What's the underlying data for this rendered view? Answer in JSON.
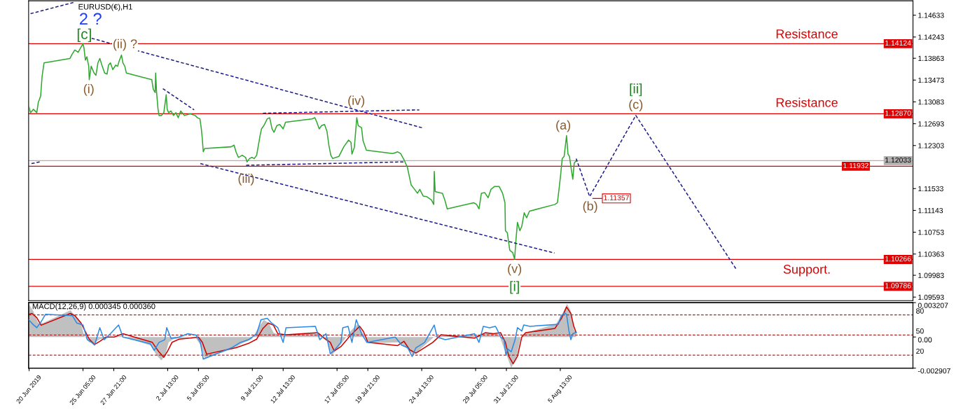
{
  "chart_data": [
    {
      "type": "line",
      "title": "EURUSD(€),H1",
      "xlim": [
        "2019-06-20T12:00",
        "2019-09-05T02:00"
      ],
      "ylim": [
        1.0953,
        1.1489
      ],
      "tick_labels": "y",
      "yticks": [
        1.14633,
        1.14243,
        1.13863,
        1.13473,
        1.13083,
        1.12693,
        1.12303,
        1.11533,
        1.11143,
        1.10753,
        1.10363,
        1.09983,
        1.09593
      ],
      "series": [
        {
          "color": "#2fa82f",
          "x": [
            "2019-06-20T12:00",
            "2019-06-20T16:00",
            "2019-06-20T22:00",
            "2019-06-21T05:00",
            "2019-06-21T08:00",
            "2019-06-21T13:00",
            "2019-06-21T16:00",
            "2019-06-21T20:00",
            "2019-06-24T02:00",
            "2019-06-24T06:00",
            "2019-06-24T12:00",
            "2019-06-24T19:00",
            "2019-06-25T00:00",
            "2019-06-25T05:00",
            "2019-06-25T07:00",
            "2019-06-25T10:00",
            "2019-06-25T13:00",
            "2019-06-25T17:00",
            "2019-06-25T18:00",
            "2019-06-25T22:00",
            "2019-06-26T04:00",
            "2019-06-26T08:00",
            "2019-06-26T12:00",
            "2019-06-26T16:00",
            "2019-06-26T21:00",
            "2019-06-27T02:00",
            "2019-06-27T07:00",
            "2019-06-27T10:00",
            "2019-06-27T14:00",
            "2019-06-27T19:00",
            "2019-06-28T01:00",
            "2019-06-28T05:00",
            "2019-06-28T08:00",
            "2019-06-28T13:00",
            "2019-06-28T16:00",
            "2019-06-28T20:00",
            "2019-06-28T23:00",
            "2019-07-01T04:00",
            "2019-07-01T07:00",
            "2019-07-01T11:00",
            "2019-07-01T12:00",
            "2019-07-01T14:00",
            "2019-07-01T17:00",
            "2019-07-01T19:00",
            "2019-07-02T00:00",
            "2019-07-02T05:00",
            "2019-07-02T10:00",
            "2019-07-02T12:00",
            "2019-07-02T15:00",
            "2019-07-02T20:00",
            "2019-07-03T01:00",
            "2019-07-03T06:00",
            "2019-07-03T11:00",
            "2019-07-03T16:00",
            "2019-07-04T00:00",
            "2019-07-04T12:00",
            "2019-07-04T22:00",
            "2019-07-05T03:00",
            "2019-07-05T08:00",
            "2019-07-05T11:00",
            "2019-07-05T13:00",
            "2019-07-05T15:00",
            "2019-07-05T18:00",
            "2019-07-08T01:00",
            "2019-07-08T07:00",
            "2019-07-08T11:00",
            "2019-07-08T16:00",
            "2019-07-09T00:00",
            "2019-07-09T07:00",
            "2019-07-09T10:00",
            "2019-07-09T15:00",
            "2019-07-09T20:00",
            "2019-07-10T01:00",
            "2019-07-10T06:00",
            "2019-07-10T10:00",
            "2019-07-10T13:00",
            "2019-07-10T16:00",
            "2019-07-10T21:00",
            "2019-07-11T04:00",
            "2019-07-11T09:00",
            "2019-07-11T14:00",
            "2019-07-11T18:00",
            "2019-07-12T00:00",
            "2019-07-12T06:00",
            "2019-07-12T13:00",
            "2019-07-12T18:00",
            "2019-07-15T01:00",
            "2019-07-15T07:00",
            "2019-07-15T11:00",
            "2019-07-15T16:00",
            "2019-07-15T21:00",
            "2019-07-16T03:00",
            "2019-07-16T08:00",
            "2019-07-16T12:00",
            "2019-07-16T16:00",
            "2019-07-16T20:00",
            "2019-07-17T09:00",
            "2019-07-17T19:00",
            "2019-07-18T05:00",
            "2019-07-18T10:00",
            "2019-07-18T12:00",
            "2019-07-18T17:00",
            "2019-07-18T22:00",
            "2019-07-19T01:00",
            "2019-07-19T08:00",
            "2019-07-19T11:00",
            "2019-07-19T18:00",
            "2019-07-22T01:00",
            "2019-07-22T11:00",
            "2019-07-22T17:00",
            "2019-07-23T00:00",
            "2019-07-23T07:00",
            "2019-07-23T15:00",
            "2019-07-23T23:00",
            "2019-07-24T04:00",
            "2019-07-24T09:00",
            "2019-07-24T16:00",
            "2019-07-24T23:00",
            "2019-07-25T09:00",
            "2019-07-25T14:00",
            "2019-07-25T15:00",
            "2019-07-25T17:00",
            "2019-07-26T01:00",
            "2019-07-26T08:00",
            "2019-07-26T13:00",
            "2019-07-26T18:00",
            "2019-07-29T01:00",
            "2019-07-29T07:00",
            "2019-07-29T12:00",
            "2019-07-29T17:00",
            "2019-07-30T00:00",
            "2019-07-30T07:00",
            "2019-07-30T13:00",
            "2019-07-30T20:00",
            "2019-07-31T06:00",
            "2019-07-31T13:00",
            "2019-07-31T18:00",
            "2019-07-31T19:00",
            "2019-07-31T23:00",
            "2019-08-01T04:00",
            "2019-08-01T10:00",
            "2019-08-01T14:00",
            "2019-08-01T17:00",
            "2019-08-01T20:00",
            "2019-08-02T01:00",
            "2019-08-02T05:00",
            "2019-08-02T10:00",
            "2019-08-02T15:00",
            "2019-08-02T21:00",
            "2019-08-05T02:00",
            "2019-08-05T07:00",
            "2019-08-05T11:00",
            "2019-08-05T14:00",
            "2019-08-05T17:00",
            "2019-08-05T21:00",
            "2019-08-06T02:00",
            "2019-08-06T05:00",
            "2019-08-06T08:00",
            "2019-08-06T12:00",
            "2019-08-06T15:00",
            "2019-08-06T18:00",
            "2019-08-06T22:00"
          ],
          "values": [
            1.1301,
            1.1289,
            1.1295,
            1.1289,
            1.1307,
            1.1319,
            1.1354,
            1.1378,
            1.1386,
            1.1393,
            1.1401,
            1.1397,
            1.1405,
            1.1412,
            1.1405,
            1.1383,
            1.1389,
            1.1372,
            1.1348,
            1.1372,
            1.136,
            1.1356,
            1.1378,
            1.1386,
            1.1372,
            1.136,
            1.1358,
            1.1374,
            1.1378,
            1.1366,
            1.1374,
            1.1372,
            1.1381,
            1.1392,
            1.1378,
            1.1372,
            1.136,
            1.1348,
            1.1331,
            1.1325,
            1.136,
            1.1325,
            1.1295,
            1.1284,
            1.1284,
            1.1289,
            1.1321,
            1.1295,
            1.1289,
            1.1292,
            1.1284,
            1.1289,
            1.128,
            1.1292,
            1.1284,
            1.1287,
            1.1284,
            1.128,
            1.1278,
            1.126,
            1.1242,
            1.1219,
            1.1225,
            1.1228,
            1.1231,
            1.1219,
            1.1209,
            1.1213,
            1.1209,
            1.1201,
            1.1207,
            1.1209,
            1.1207,
            1.1213,
            1.1233,
            1.1248,
            1.126,
            1.1266,
            1.1278,
            1.128,
            1.126,
            1.1254,
            1.1266,
            1.1268,
            1.126,
            1.1272,
            1.1278,
            1.128,
            1.1272,
            1.126,
            1.1266,
            1.1268,
            1.1256,
            1.1231,
            1.1213,
            1.1207,
            1.1211,
            1.1228,
            1.124,
            1.1236,
            1.1215,
            1.1227,
            1.128,
            1.1266,
            1.1262,
            1.1239,
            1.1222,
            1.1216,
            1.1219,
            1.1216,
            1.1205,
            1.1192,
            1.116,
            1.1151,
            1.1145,
            1.1152,
            1.114,
            1.1139,
            1.1133,
            1.1125,
            1.1184,
            1.1148,
            1.1146,
            1.1145,
            1.1133,
            1.1117,
            1.1128,
            1.1125,
            1.1117,
            1.1145,
            1.1146,
            1.1137,
            1.1152,
            1.1157,
            1.1157,
            1.1145,
            1.1128,
            1.1078,
            1.1074,
            1.1043,
            1.1039,
            1.1027,
            1.1063,
            1.1093,
            1.1078,
            1.1086,
            1.111,
            1.1101,
            1.1113,
            1.1125,
            1.1128,
            1.1157,
            1.118,
            1.1207,
            1.1211,
            1.1248,
            1.1215,
            1.1211,
            1.1187,
            1.117,
            1.1199,
            1.1203
          ]
        },
        {
          "color": "#1c1c8c",
          "line_style": "dashed",
          "x": [
            "2019-08-06T22:00",
            "2019-08-08T02:00",
            "2019-08-12T02:00",
            "2019-08-20T18:00"
          ],
          "values": [
            1.1207,
            1.1139,
            1.1284,
            1.101
          ]
        },
        {
          "color": "#1c1c8c",
          "line_style": "dashed",
          "x": [
            "2019-06-25T23:00",
            "2019-07-24T14:00"
          ],
          "values": [
            1.1422,
            1.1262
          ]
        },
        {
          "color": "#1c1c8c",
          "line_style": "dashed",
          "x": [
            "2019-07-02T03:00",
            "2019-07-04T20:00"
          ],
          "values": [
            1.1332,
            1.1294
          ]
        },
        {
          "color": "#1c1c8c",
          "line_style": "dashed",
          "x": [
            "2019-07-05T09:00",
            "2019-08-05T01:00"
          ],
          "values": [
            1.1198,
            1.1038
          ]
        },
        {
          "color": "#1c1c8c",
          "line_style": "dashed",
          "x": [
            "2019-07-10T19:00",
            "2019-07-24T08:00"
          ],
          "values": [
            1.1288,
            1.1294
          ]
        },
        {
          "color": "#1c1c8c",
          "line_style": "dashed",
          "x": [
            "2019-07-09T08:00",
            "2019-07-23T00:00"
          ],
          "values": [
            1.1195,
            1.1201
          ]
        },
        {
          "color": "#1c1c8c",
          "line_style": "dashed",
          "x": [
            "2019-06-20T16:00",
            "2019-06-24T09:00"
          ],
          "values": [
            1.1466,
            1.1486
          ]
        },
        {
          "color": "#1c1c8c",
          "line_style": "dashed",
          "x": [
            "2019-06-20T18:00",
            "2019-06-21T11:00"
          ],
          "values": [
            1.1198,
            1.1201
          ]
        }
      ],
      "ref_lines": [
        {
          "axis": "y",
          "value": 1.14124,
          "label": "1.14124",
          "color": "#e00000"
        },
        {
          "axis": "y",
          "value": 1.1287,
          "label": "1.12870",
          "color": "#e00000"
        },
        {
          "axis": "y",
          "value": 1.12033,
          "label": "1.12033",
          "color": "#b0b0b0"
        },
        {
          "axis": "y",
          "value": 1.11932,
          "label": "1.11932",
          "color": "#e00000"
        },
        {
          "axis": "y",
          "value": 1.10266,
          "label": "1.10266",
          "color": "#e00000"
        },
        {
          "axis": "y",
          "value": 1.09786,
          "label": "1.09786",
          "color": "#e00000"
        }
      ],
      "annotations": [
        "2 ?",
        "[c]",
        "(ii) ?",
        "(i)",
        "(iii)",
        "(iv)",
        "(v)",
        "[i]",
        "(a)",
        "(b)",
        "(c)",
        "[ii]",
        "Resistance",
        "Resistance",
        "Support.",
        "1.11357"
      ]
    },
    {
      "type": "line",
      "title": "MACD(12,26,9) 0.000345 0.000360",
      "xlim": [
        "2019-06-20T12:00",
        "2019-09-05T02:00"
      ],
      "ylim": [
        -0.002907,
        0.003207
      ],
      "y2lim": [
        0.6,
        98.4
      ],
      "xticks": [
        {
          "value": "2019-06-20T13:00",
          "label": "20 Jun 2019"
        },
        {
          "value": "2019-06-25T05:00",
          "label": "25 Jun 05:00"
        },
        {
          "value": "2019-06-27T21:00",
          "label": "27 Jun 21:00"
        },
        {
          "value": "2019-07-02T13:00",
          "label": "2 Jul 13:00"
        },
        {
          "value": "2019-07-05T05:00",
          "label": "5 Jul 05:00"
        },
        {
          "value": "2019-07-09T21:00",
          "label": "9 Jul 21:00"
        },
        {
          "value": "2019-07-12T13:00",
          "label": "12 Jul 13:00"
        },
        {
          "value": "2019-07-17T05:00",
          "label": "17 Jul 05:00"
        },
        {
          "value": "2019-07-19T21:00",
          "label": "19 Jul 21:00"
        },
        {
          "value": "2019-07-24T13:00",
          "label": "24 Jul 13:00"
        },
        {
          "value": "2019-07-29T05:00",
          "label": "29 Jul 05:00"
        },
        {
          "value": "2019-07-31T21:00",
          "label": "31 Jul 21:00"
        },
        {
          "value": "2019-08-05T13:00",
          "label": "5 Aug 13:00"
        }
      ],
      "yticks": [
        0.003207,
        {
          "value": 0,
          "label": "0.00"
        },
        -0.002907
      ],
      "y2ticks": [
        80,
        50,
        20
      ],
      "series": [
        {
          "type": "area",
          "color": "#c0c0c0",
          "x": [
            "2019-06-20T12:00",
            "2019-06-20T22:00",
            "2019-06-21T08:00",
            "2019-06-21T18:00",
            "2019-06-24T03:00",
            "2019-06-24T14:00",
            "2019-06-25T00:00",
            "2019-06-25T08:00",
            "2019-06-25T18:00",
            "2019-06-26T04:00",
            "2019-06-26T16:00",
            "2019-06-27T07:00",
            "2019-06-27T22:00",
            "2019-06-28T13:00",
            "2019-07-01T02:00",
            "2019-07-01T14:00",
            "2019-07-02T00:00",
            "2019-07-02T08:00",
            "2019-07-02T15:00",
            "2019-07-03T01:00",
            "2019-07-03T21:00",
            "2019-07-04T22:00",
            "2019-07-05T10:00",
            "2019-07-05T18:00",
            "2019-07-08T04:00",
            "2019-07-09T00:00",
            "2019-07-09T20:00",
            "2019-07-10T11:00",
            "2019-07-10T21:00",
            "2019-07-11T07:00",
            "2019-07-11T17:00",
            "2019-07-12T08:00",
            "2019-07-15T04:00",
            "2019-07-15T19:00",
            "2019-07-16T10:00",
            "2019-07-16T18:00",
            "2019-07-17T06:00",
            "2019-07-17T21:00",
            "2019-07-18T12:00",
            "2019-07-19T00:00",
            "2019-07-19T10:00",
            "2019-07-19T23:00",
            "2019-07-22T14:00",
            "2019-07-23T05:00",
            "2019-07-23T20:00",
            "2019-07-24T11:00",
            "2019-07-25T02:00",
            "2019-07-25T17:00",
            "2019-07-26T13:00",
            "2019-07-29T14:00",
            "2019-07-30T10:00",
            "2019-07-31T06:00",
            "2019-07-31T16:00",
            "2019-08-01T00:00",
            "2019-08-01T07:00",
            "2019-08-01T17:00",
            "2019-08-02T03:00",
            "2019-08-02T13:00",
            "2019-08-05T04:00",
            "2019-08-05T19:00",
            "2019-08-06T03:00",
            "2019-08-06T10:00",
            "2019-08-06T17:00",
            "2019-08-06T22:00"
          ],
          "values": [
            0.0031,
            0.0024,
            0.0013,
            0.0013,
            0.0025,
            0.0019,
            0.0013,
            0.0001,
            -0.0005,
            -0.0006,
            -0.0002,
            -0.0001,
            0.0,
            0.0001,
            -0.0008,
            -0.0017,
            -0.0022,
            -0.0017,
            -0.0005,
            -0.0002,
            -0.0001,
            0.0,
            -0.0008,
            -0.002,
            -0.0011,
            -0.0006,
            -0.0002,
            0.001,
            0.0016,
            0.0013,
            0.0004,
            0.0001,
            0.0004,
            0.0001,
            -0.0005,
            -0.0017,
            -0.0011,
            -0.0002,
            0.0007,
            0.0012,
            0.0004,
            -0.0006,
            -0.0005,
            -0.001,
            -0.0017,
            -0.0011,
            -0.0005,
            0.0001,
            0.0001,
            0.0002,
            0.0004,
            0.0002,
            -0.0011,
            -0.002,
            -0.0029,
            -0.002,
            0.0,
            0.0004,
            0.0012,
            0.0023,
            0.0031,
            0.0025,
            0.0007,
            0.0004
          ]
        },
        {
          "type": "line",
          "color": "#d00000",
          "x": [
            "2019-06-20T12:00",
            "2019-06-20T19:00",
            "2019-06-21T05:00",
            "2019-06-21T14:00",
            "2019-06-24T03:00",
            "2019-06-24T12:00",
            "2019-06-25T01:00",
            "2019-06-25T10:00",
            "2019-06-25T18:00",
            "2019-06-26T05:00",
            "2019-06-26T16:00",
            "2019-06-27T05:00",
            "2019-06-27T22:00",
            "2019-06-28T16:00",
            "2019-07-01T05:00",
            "2019-07-01T19:00",
            "2019-07-02T05:00",
            "2019-07-02T13:00",
            "2019-07-02T22:00",
            "2019-07-03T13:00",
            "2019-07-04T12:00",
            "2019-07-05T05:00",
            "2019-07-05T13:00",
            "2019-07-05T22:00",
            "2019-07-08T11:00",
            "2019-07-09T13:00",
            "2019-07-10T06:00",
            "2019-07-10T19:00",
            "2019-07-11T06:00",
            "2019-07-11T17:00",
            "2019-07-12T02:00",
            "2019-07-12T19:00",
            "2019-07-15T13:00",
            "2019-07-16T02:00",
            "2019-07-16T15:00",
            "2019-07-16T23:00",
            "2019-07-17T13:00",
            "2019-07-18T06:00",
            "2019-07-18T17:00",
            "2019-07-19T04:00",
            "2019-07-19T12:00",
            "2019-07-19T21:00",
            "2019-07-22T11:00",
            "2019-07-23T00:00",
            "2019-07-23T12:00",
            "2019-07-24T01:00",
            "2019-07-24T19:00",
            "2019-07-25T12:00",
            "2019-07-26T05:00",
            "2019-07-29T03:00",
            "2019-07-30T01:00",
            "2019-07-30T18:00",
            "2019-07-31T09:00",
            "2019-07-31T19:00",
            "2019-08-01T02:00",
            "2019-08-01T11:00",
            "2019-08-01T20:00",
            "2019-08-02T05:00",
            "2019-08-02T13:00",
            "2019-08-05T02:00",
            "2019-08-05T15:00",
            "2019-08-06T02:00",
            "2019-08-06T11:00",
            "2019-08-06T17:00",
            "2019-08-06T22:00"
          ],
          "values": [
            0.0021,
            0.0022,
            0.0018,
            0.0011,
            0.0022,
            0.002,
            0.0013,
            0.0005,
            -0.0002,
            -0.0007,
            -0.0004,
            0.0,
            0.0,
            0.0003,
            -0.0005,
            -0.0014,
            -0.0019,
            -0.0013,
            -0.0005,
            -0.0002,
            -0.0001,
            0.0,
            -0.0005,
            -0.0016,
            -0.001,
            -0.0006,
            -0.0002,
            0.0008,
            0.0013,
            0.0011,
            0.0003,
            0.0002,
            0.0004,
            -0.0001,
            -0.0005,
            -0.0013,
            -0.0009,
            0.0,
            0.0005,
            0.001,
            0.0005,
            -0.0005,
            -0.0008,
            -0.0004,
            -0.0012,
            -0.0015,
            -0.001,
            -0.0005,
            0.0002,
            -0.0001,
            0.0004,
            0.0003,
            0.0004,
            -0.0005,
            -0.0018,
            -0.0025,
            -0.0018,
            0.0,
            0.0004,
            0.0008,
            0.0017,
            0.0028,
            0.0022,
            0.001,
            0.0004
          ]
        },
        {
          "type": "line",
          "axis": "y2",
          "color": "#2a8ae6",
          "x": [
            "2019-06-20T12:00",
            "2019-06-20T21:00",
            "2019-06-21T05:00",
            "2019-06-21T14:00",
            "2019-06-21T23:00",
            "2019-06-24T07:00",
            "2019-06-24T16:00",
            "2019-06-25T05:00",
            "2019-06-25T14:00",
            "2019-06-25T23:00",
            "2019-06-26T05:00",
            "2019-06-26T16:00",
            "2019-06-27T01:00",
            "2019-06-27T14:00",
            "2019-06-28T07:00",
            "2019-06-28T16:00",
            "2019-07-01T01:00",
            "2019-07-01T09:00",
            "2019-07-01T19:00",
            "2019-07-02T07:00",
            "2019-07-02T11:00",
            "2019-07-02T20:00",
            "2019-07-03T13:00",
            "2019-07-04T07:00",
            "2019-07-05T00:00",
            "2019-07-05T09:00",
            "2019-07-05T15:00",
            "2019-07-08T02:00",
            "2019-07-08T20:00",
            "2019-07-09T13:00",
            "2019-07-10T06:00",
            "2019-07-10T15:00",
            "2019-07-11T04:00",
            "2019-07-11T13:00",
            "2019-07-12T02:00",
            "2019-07-12T13:00",
            "2019-07-12T19:00",
            "2019-07-15T08:00",
            "2019-07-15T17:00",
            "2019-07-16T06:00",
            "2019-07-16T15:00",
            "2019-07-16T23:00",
            "2019-07-17T13:00",
            "2019-07-17T17:00",
            "2019-07-18T04:00",
            "2019-07-18T12:00",
            "2019-07-18T21:00",
            "2019-07-19T08:00",
            "2019-07-19T19:00",
            "2019-07-22T06:00",
            "2019-07-22T19:00",
            "2019-07-23T08:00",
            "2019-07-23T17:00",
            "2019-07-24T01:00",
            "2019-07-24T19:00",
            "2019-07-25T15:00",
            "2019-07-25T21:00",
            "2019-07-26T14:00",
            "2019-07-29T03:00",
            "2019-07-29T12:00",
            "2019-07-29T21:00",
            "2019-07-30T10:00",
            "2019-07-30T22:00",
            "2019-07-31T00:00",
            "2019-07-31T09:00",
            "2019-07-31T16:00",
            "2019-07-31T20:00",
            "2019-08-01T00:00",
            "2019-08-01T07:00",
            "2019-08-01T15:00",
            "2019-08-01T20:00",
            "2019-08-02T05:00",
            "2019-08-02T09:00",
            "2019-08-02T22:00",
            "2019-08-05T09:00",
            "2019-08-05T15:00",
            "2019-08-05T22:00",
            "2019-08-06T02:00",
            "2019-08-06T07:00",
            "2019-08-06T11:00",
            "2019-08-06T15:00",
            "2019-08-06T22:00"
          ],
          "values": [
            73,
            66,
            61,
            70,
            81,
            79,
            68,
            65,
            43,
            39,
            35,
            61,
            43,
            52,
            65,
            47,
            37,
            27,
            39,
            43,
            61,
            45,
            47,
            52,
            50,
            39,
            14,
            31,
            39,
            43,
            52,
            73,
            75,
            68,
            61,
            39,
            61,
            63,
            43,
            52,
            22,
            27,
            39,
            61,
            63,
            39,
            73,
            52,
            39,
            47,
            35,
            31,
            18,
            31,
            39,
            65,
            47,
            43,
            52,
            39,
            63,
            61,
            63,
            61,
            47,
            43,
            20,
            29,
            25,
            43,
            61,
            56,
            65,
            63,
            66,
            79,
            83,
            81,
            56,
            43,
            52,
            54
          ]
        }
      ],
      "ref_lines": [
        {
          "axis": "y2",
          "value": 80,
          "color": "#b22222",
          "line_style": "dashed"
        },
        {
          "axis": "y2",
          "value": 50,
          "color": "#b22222",
          "line_style": "dashed"
        },
        {
          "axis": "y2",
          "value": 20,
          "color": "#b22222",
          "line_style": "dashed"
        }
      ]
    }
  ]
}
